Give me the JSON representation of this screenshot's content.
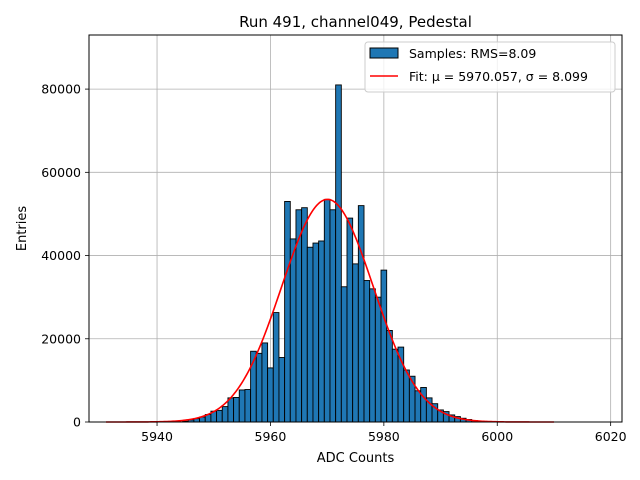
{
  "chart_data": {
    "type": "bar",
    "title": "Run 491, channel049, Pedestal",
    "xlabel": "ADC Counts",
    "ylabel": "Entries",
    "xlim": [
      5928,
      6022
    ],
    "ylim": [
      0,
      93000
    ],
    "xticks": [
      5940,
      5960,
      5980,
      6000,
      6020
    ],
    "yticks": [
      0,
      20000,
      40000,
      60000,
      80000
    ],
    "grid": true,
    "legend_position": "top-right",
    "colors": {
      "bars": "#1f77b4",
      "bar_edge": "#000000",
      "fit": "#ff0000"
    },
    "series": [
      {
        "name": "Samples: RMS=8.09",
        "kind": "histogram",
        "bin_width": 1,
        "bins": [
          {
            "x": 5945,
            "y": 200
          },
          {
            "x": 5946,
            "y": 500
          },
          {
            "x": 5947,
            "y": 800
          },
          {
            "x": 5948,
            "y": 1200
          },
          {
            "x": 5949,
            "y": 1800
          },
          {
            "x": 5950,
            "y": 2600
          },
          {
            "x": 5951,
            "y": 2800
          },
          {
            "x": 5952,
            "y": 3700
          },
          {
            "x": 5953,
            "y": 5800
          },
          {
            "x": 5954,
            "y": 5900
          },
          {
            "x": 5955,
            "y": 7700
          },
          {
            "x": 5956,
            "y": 7800
          },
          {
            "x": 5957,
            "y": 17000
          },
          {
            "x": 5958,
            "y": 16500
          },
          {
            "x": 5959,
            "y": 19000
          },
          {
            "x": 5960,
            "y": 13000
          },
          {
            "x": 5961,
            "y": 26300
          },
          {
            "x": 5962,
            "y": 15500
          },
          {
            "x": 5963,
            "y": 53000
          },
          {
            "x": 5964,
            "y": 44000
          },
          {
            "x": 5965,
            "y": 51000
          },
          {
            "x": 5966,
            "y": 51500
          },
          {
            "x": 5967,
            "y": 42000
          },
          {
            "x": 5968,
            "y": 43000
          },
          {
            "x": 5969,
            "y": 43500
          },
          {
            "x": 5970,
            "y": 53500
          },
          {
            "x": 5971,
            "y": 51000
          },
          {
            "x": 5972,
            "y": 81000
          },
          {
            "x": 5973,
            "y": 32500
          },
          {
            "x": 5974,
            "y": 49000
          },
          {
            "x": 5975,
            "y": 38000
          },
          {
            "x": 5976,
            "y": 52000
          },
          {
            "x": 5977,
            "y": 34000
          },
          {
            "x": 5978,
            "y": 32000
          },
          {
            "x": 5979,
            "y": 30000
          },
          {
            "x": 5980,
            "y": 36500
          },
          {
            "x": 5981,
            "y": 22000
          },
          {
            "x": 5982,
            "y": 17500
          },
          {
            "x": 5983,
            "y": 18000
          },
          {
            "x": 5984,
            "y": 12500
          },
          {
            "x": 5985,
            "y": 11000
          },
          {
            "x": 5986,
            "y": 7500
          },
          {
            "x": 5987,
            "y": 8300
          },
          {
            "x": 5988,
            "y": 5800
          },
          {
            "x": 5989,
            "y": 4400
          },
          {
            "x": 5990,
            "y": 2900
          },
          {
            "x": 5991,
            "y": 2500
          },
          {
            "x": 5992,
            "y": 1700
          },
          {
            "x": 5993,
            "y": 1300
          },
          {
            "x": 5994,
            "y": 900
          },
          {
            "x": 5995,
            "y": 600
          },
          {
            "x": 5996,
            "y": 350
          },
          {
            "x": 5997,
            "y": 200
          }
        ]
      },
      {
        "name": "Fit: μ = 5970.057, σ = 8.099",
        "kind": "gaussian",
        "mu": 5970.057,
        "sigma": 8.099,
        "amplitude": 53500,
        "x_range": [
          5931,
          6010
        ]
      }
    ]
  }
}
